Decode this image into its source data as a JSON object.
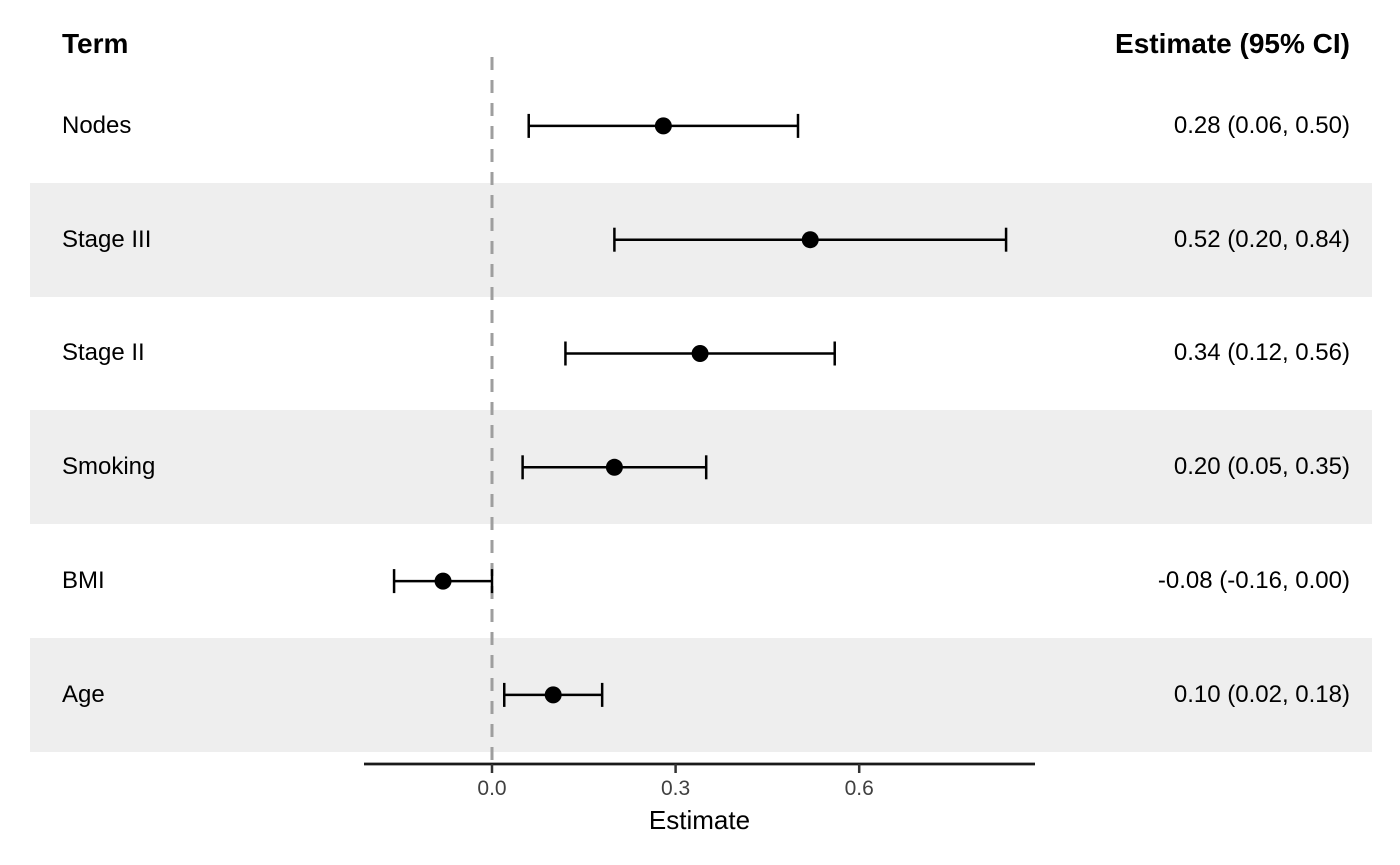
{
  "header": {
    "term": "Term",
    "estimate": "Estimate (95% CI)"
  },
  "chart_data": {
    "type": "forest",
    "xlabel": "Estimate",
    "x_ticks": [
      0.0,
      0.3,
      0.6
    ],
    "x_tick_labels": [
      "0.0",
      "0.3",
      "0.6"
    ],
    "xlim": [
      -0.21,
      0.89
    ],
    "reference_line": 0,
    "grid": false,
    "legend": "none",
    "rows": [
      {
        "term": "Nodes",
        "estimate": 0.28,
        "ci_low": 0.06,
        "ci_high": 0.5,
        "label": "0.28 (0.06, 0.50)"
      },
      {
        "term": "Stage III",
        "estimate": 0.52,
        "ci_low": 0.2,
        "ci_high": 0.84,
        "label": "0.52 (0.20, 0.84)"
      },
      {
        "term": "Stage II",
        "estimate": 0.34,
        "ci_low": 0.12,
        "ci_high": 0.56,
        "label": "0.34 (0.12, 0.56)"
      },
      {
        "term": "Smoking",
        "estimate": 0.2,
        "ci_low": 0.05,
        "ci_high": 0.35,
        "label": "0.20 (0.05, 0.35)"
      },
      {
        "term": "BMI",
        "estimate": -0.08,
        "ci_low": -0.16,
        "ci_high": 0.0,
        "label": "-0.08 (-0.16, 0.00)"
      },
      {
        "term": "Age",
        "estimate": 0.1,
        "ci_low": 0.02,
        "ci_high": 0.18,
        "label": "0.10 (0.02, 0.18)"
      }
    ],
    "colors": {
      "stripe": "#eeeeee",
      "marker": "#000000",
      "ci_line": "#000000",
      "reference_line": "#9e9e9e",
      "axis_line": "#1a1a1a",
      "tick_mark": "#333333",
      "tick_text": "#404040",
      "text": "#000000"
    }
  }
}
